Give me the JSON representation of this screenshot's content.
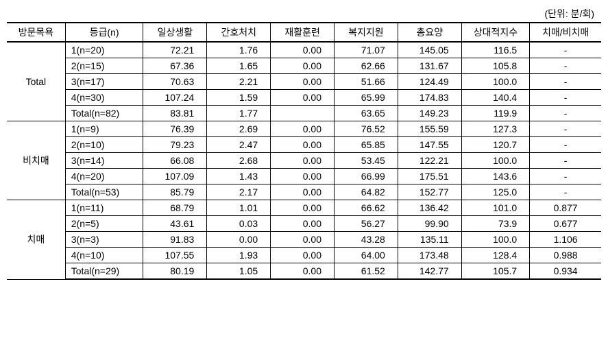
{
  "unit_label": "(단위: 분/회)",
  "columns": [
    "방문목욕",
    "등급(n)",
    "일상생활",
    "간호처치",
    "재활훈련",
    "복지지원",
    "총요양",
    "상대적지수",
    "치매/비치매"
  ],
  "groups": [
    {
      "name": "Total",
      "rows": [
        {
          "grade": "1(n=20)",
          "daily": "72.21",
          "nursing": "1.76",
          "rehab": "0.00",
          "welfare": "71.07",
          "total": "145.05",
          "index": "116.5",
          "ratio": "-"
        },
        {
          "grade": "2(n=15)",
          "daily": "67.36",
          "nursing": "1.65",
          "rehab": "0.00",
          "welfare": "62.66",
          "total": "131.67",
          "index": "105.8",
          "ratio": "-"
        },
        {
          "grade": "3(n=17)",
          "daily": "70.63",
          "nursing": "2.21",
          "rehab": "0.00",
          "welfare": "51.66",
          "total": "124.49",
          "index": "100.0",
          "ratio": "-"
        },
        {
          "grade": "4(n=30)",
          "daily": "107.24",
          "nursing": "1.59",
          "rehab": "0.00",
          "welfare": "65.99",
          "total": "174.83",
          "index": "140.4",
          "ratio": "-"
        },
        {
          "grade": "Total(n=82)",
          "daily": "83.81",
          "nursing": "1.77",
          "rehab": "",
          "welfare": "63.65",
          "total": "149.23",
          "index": "119.9",
          "ratio": "-"
        }
      ]
    },
    {
      "name": "비치매",
      "rows": [
        {
          "grade": "1(n=9)",
          "daily": "76.39",
          "nursing": "2.69",
          "rehab": "0.00",
          "welfare": "76.52",
          "total": "155.59",
          "index": "127.3",
          "ratio": "-"
        },
        {
          "grade": "2(n=10)",
          "daily": "79.23",
          "nursing": "2.47",
          "rehab": "0.00",
          "welfare": "65.85",
          "total": "147.55",
          "index": "120.7",
          "ratio": "-"
        },
        {
          "grade": "3(n=14)",
          "daily": "66.08",
          "nursing": "2.68",
          "rehab": "0.00",
          "welfare": "53.45",
          "total": "122.21",
          "index": "100.0",
          "ratio": "-"
        },
        {
          "grade": "4(n=20)",
          "daily": "107.09",
          "nursing": "1.43",
          "rehab": "0.00",
          "welfare": "66.99",
          "total": "175.51",
          "index": "143.6",
          "ratio": "-"
        },
        {
          "grade": "Total(n=53)",
          "daily": "85.79",
          "nursing": "2.17",
          "rehab": "0.00",
          "welfare": "64.82",
          "total": "152.77",
          "index": "125.0",
          "ratio": "-"
        }
      ]
    },
    {
      "name": "치매",
      "rows": [
        {
          "grade": "1(n=11)",
          "daily": "68.79",
          "nursing": "1.01",
          "rehab": "0.00",
          "welfare": "66.62",
          "total": "136.42",
          "index": "101.0",
          "ratio": "0.877"
        },
        {
          "grade": "2(n=5)",
          "daily": "43.61",
          "nursing": "0.03",
          "rehab": "0.00",
          "welfare": "56.27",
          "total": "99.90",
          "index": "73.9",
          "ratio": "0.677"
        },
        {
          "grade": "3(n=3)",
          "daily": "91.83",
          "nursing": "0.00",
          "rehab": "0.00",
          "welfare": "43.28",
          "total": "135.11",
          "index": "100.0",
          "ratio": "1.106"
        },
        {
          "grade": "4(n=10)",
          "daily": "107.55",
          "nursing": "1.93",
          "rehab": "0.00",
          "welfare": "64.00",
          "total": "173.48",
          "index": "128.4",
          "ratio": "0.988"
        },
        {
          "grade": "Total(n=29)",
          "daily": "80.19",
          "nursing": "1.05",
          "rehab": "0.00",
          "welfare": "61.52",
          "total": "142.77",
          "index": "105.7",
          "ratio": "0.934"
        }
      ]
    }
  ]
}
